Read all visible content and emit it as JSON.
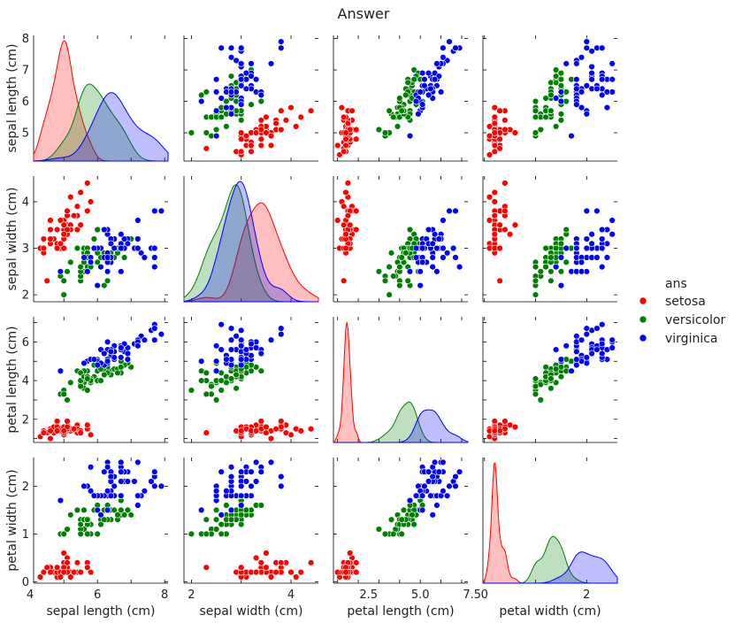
{
  "chart_data": {
    "type": "scatter",
    "title": "Answer",
    "variables": [
      "sepal length (cm)",
      "sepal width (cm)",
      "petal length (cm)",
      "petal width (cm)"
    ],
    "ranges": [
      [
        4.1,
        8.1
      ],
      [
        1.85,
        4.55
      ],
      [
        0.8,
        7.3
      ],
      [
        -0.03,
        2.6
      ]
    ],
    "ticks": [
      [
        4,
        5,
        6,
        7,
        8
      ],
      [
        2,
        3,
        4
      ],
      [
        1,
        2,
        3,
        4,
        5,
        6,
        7
      ],
      [
        0,
        1,
        2
      ]
    ],
    "x_tick_labels": [
      [
        "4",
        "6",
        "8"
      ],
      [
        "2",
        "4"
      ],
      [
        "2.5",
        "5.0",
        "7.5"
      ],
      [
        "0",
        "2"
      ]
    ],
    "y_tick_labels": [
      [
        "5",
        "6",
        "7",
        "8"
      ],
      [
        "2",
        "3",
        "4"
      ],
      [
        "2",
        "4",
        "6"
      ],
      [
        "0",
        "1",
        "2"
      ]
    ],
    "x_tick_values": [
      [
        4,
        6,
        8
      ],
      [
        2,
        4
      ],
      [
        2.5,
        5.0,
        7.5
      ],
      [
        0,
        2
      ]
    ],
    "y_tick_values": [
      [
        5,
        6,
        7,
        8
      ],
      [
        2,
        3,
        4
      ],
      [
        2,
        4,
        6
      ],
      [
        0,
        1,
        2
      ]
    ],
    "diagonal": "kde",
    "legend": {
      "title": "ans",
      "position": "right",
      "entries": [
        "setosa",
        "versicolor",
        "virginica"
      ]
    },
    "series": [
      {
        "name": "setosa",
        "color": "#ff0000",
        "points": [
          [
            5.1,
            3.5,
            1.4,
            0.2
          ],
          [
            4.9,
            3.0,
            1.4,
            0.2
          ],
          [
            4.7,
            3.2,
            1.3,
            0.2
          ],
          [
            4.6,
            3.1,
            1.5,
            0.2
          ],
          [
            5.0,
            3.6,
            1.4,
            0.2
          ],
          [
            5.4,
            3.9,
            1.7,
            0.4
          ],
          [
            4.6,
            3.4,
            1.4,
            0.3
          ],
          [
            5.0,
            3.4,
            1.5,
            0.2
          ],
          [
            4.4,
            2.9,
            1.4,
            0.2
          ],
          [
            4.9,
            3.1,
            1.5,
            0.1
          ],
          [
            5.4,
            3.7,
            1.5,
            0.2
          ],
          [
            4.8,
            3.4,
            1.6,
            0.2
          ],
          [
            4.8,
            3.0,
            1.4,
            0.1
          ],
          [
            4.3,
            3.0,
            1.1,
            0.1
          ],
          [
            5.8,
            4.0,
            1.2,
            0.2
          ],
          [
            5.7,
            4.4,
            1.5,
            0.4
          ],
          [
            5.4,
            3.9,
            1.3,
            0.4
          ],
          [
            5.1,
            3.5,
            1.4,
            0.3
          ],
          [
            5.7,
            3.8,
            1.7,
            0.3
          ],
          [
            5.1,
            3.8,
            1.5,
            0.3
          ],
          [
            5.4,
            3.4,
            1.7,
            0.2
          ],
          [
            5.1,
            3.7,
            1.5,
            0.4
          ],
          [
            4.6,
            3.6,
            1.0,
            0.2
          ],
          [
            5.1,
            3.3,
            1.7,
            0.5
          ],
          [
            4.8,
            3.4,
            1.9,
            0.2
          ],
          [
            5.0,
            3.0,
            1.6,
            0.2
          ],
          [
            5.0,
            3.4,
            1.6,
            0.4
          ],
          [
            5.2,
            3.5,
            1.5,
            0.2
          ],
          [
            5.2,
            3.4,
            1.4,
            0.2
          ],
          [
            4.7,
            3.2,
            1.6,
            0.2
          ],
          [
            4.8,
            3.1,
            1.6,
            0.2
          ],
          [
            5.4,
            3.4,
            1.5,
            0.4
          ],
          [
            5.2,
            4.1,
            1.5,
            0.1
          ],
          [
            5.5,
            4.2,
            1.4,
            0.2
          ],
          [
            4.9,
            3.1,
            1.5,
            0.2
          ],
          [
            5.0,
            3.2,
            1.2,
            0.2
          ],
          [
            5.5,
            3.5,
            1.3,
            0.2
          ],
          [
            4.9,
            3.6,
            1.4,
            0.1
          ],
          [
            4.4,
            3.0,
            1.3,
            0.2
          ],
          [
            5.1,
            3.4,
            1.5,
            0.2
          ],
          [
            5.0,
            3.5,
            1.3,
            0.3
          ],
          [
            4.5,
            2.3,
            1.3,
            0.3
          ],
          [
            4.4,
            3.2,
            1.3,
            0.2
          ],
          [
            5.0,
            3.5,
            1.6,
            0.6
          ],
          [
            5.1,
            3.8,
            1.9,
            0.4
          ],
          [
            4.8,
            3.0,
            1.4,
            0.3
          ],
          [
            5.1,
            3.8,
            1.6,
            0.2
          ],
          [
            4.6,
            3.2,
            1.4,
            0.2
          ],
          [
            5.3,
            3.7,
            1.5,
            0.2
          ],
          [
            5.0,
            3.3,
            1.4,
            0.2
          ]
        ]
      },
      {
        "name": "versicolor",
        "color": "#008000",
        "points": [
          [
            7.0,
            3.2,
            4.7,
            1.4
          ],
          [
            6.4,
            3.2,
            4.5,
            1.5
          ],
          [
            6.9,
            3.1,
            4.9,
            1.5
          ],
          [
            5.5,
            2.3,
            4.0,
            1.3
          ],
          [
            6.5,
            2.8,
            4.6,
            1.5
          ],
          [
            5.7,
            2.8,
            4.5,
            1.3
          ],
          [
            6.3,
            3.3,
            4.7,
            1.6
          ],
          [
            4.9,
            2.4,
            3.3,
            1.0
          ],
          [
            6.6,
            2.9,
            4.6,
            1.3
          ],
          [
            5.2,
            2.7,
            3.9,
            1.4
          ],
          [
            5.0,
            2.0,
            3.5,
            1.0
          ],
          [
            5.9,
            3.0,
            4.2,
            1.5
          ],
          [
            6.0,
            2.2,
            4.0,
            1.0
          ],
          [
            6.1,
            2.9,
            4.7,
            1.4
          ],
          [
            5.6,
            2.9,
            3.6,
            1.3
          ],
          [
            6.7,
            3.1,
            4.4,
            1.4
          ],
          [
            5.6,
            3.0,
            4.5,
            1.5
          ],
          [
            5.8,
            2.7,
            4.1,
            1.0
          ],
          [
            6.2,
            2.2,
            4.5,
            1.5
          ],
          [
            5.6,
            2.5,
            3.9,
            1.1
          ],
          [
            5.9,
            3.2,
            4.8,
            1.8
          ],
          [
            6.1,
            2.8,
            4.0,
            1.3
          ],
          [
            6.3,
            2.5,
            4.9,
            1.5
          ],
          [
            6.1,
            2.8,
            4.7,
            1.2
          ],
          [
            6.4,
            2.9,
            4.3,
            1.3
          ],
          [
            6.6,
            3.0,
            4.4,
            1.4
          ],
          [
            6.8,
            2.8,
            4.8,
            1.4
          ],
          [
            6.7,
            3.0,
            5.0,
            1.7
          ],
          [
            6.0,
            2.9,
            4.5,
            1.5
          ],
          [
            5.7,
            2.6,
            3.5,
            1.0
          ],
          [
            5.5,
            2.4,
            3.8,
            1.1
          ],
          [
            5.5,
            2.4,
            3.7,
            1.0
          ],
          [
            5.8,
            2.7,
            3.9,
            1.2
          ],
          [
            6.0,
            2.7,
            5.1,
            1.6
          ],
          [
            5.4,
            3.0,
            4.5,
            1.5
          ],
          [
            6.0,
            3.4,
            4.5,
            1.6
          ],
          [
            6.7,
            3.1,
            4.7,
            1.5
          ],
          [
            6.3,
            2.3,
            4.4,
            1.3
          ],
          [
            5.6,
            3.0,
            4.1,
            1.3
          ],
          [
            5.5,
            2.5,
            4.0,
            1.3
          ],
          [
            5.5,
            2.6,
            4.4,
            1.2
          ],
          [
            6.1,
            3.0,
            4.6,
            1.4
          ],
          [
            5.8,
            2.6,
            4.0,
            1.2
          ],
          [
            5.0,
            2.3,
            3.3,
            1.0
          ],
          [
            5.6,
            2.7,
            4.2,
            1.3
          ],
          [
            5.7,
            3.0,
            4.2,
            1.2
          ],
          [
            5.7,
            2.9,
            4.2,
            1.3
          ],
          [
            6.2,
            2.9,
            4.3,
            1.3
          ],
          [
            5.1,
            2.5,
            3.0,
            1.1
          ],
          [
            5.7,
            2.8,
            4.1,
            1.3
          ]
        ]
      },
      {
        "name": "virginica",
        "color": "#0000ff",
        "points": [
          [
            6.3,
            3.3,
            6.0,
            2.5
          ],
          [
            5.8,
            2.7,
            5.1,
            1.9
          ],
          [
            7.1,
            3.0,
            5.9,
            2.1
          ],
          [
            6.3,
            2.9,
            5.6,
            1.8
          ],
          [
            6.5,
            3.0,
            5.8,
            2.2
          ],
          [
            7.6,
            3.0,
            6.6,
            2.1
          ],
          [
            4.9,
            2.5,
            4.5,
            1.7
          ],
          [
            7.3,
            2.9,
            6.3,
            1.8
          ],
          [
            6.7,
            2.5,
            5.8,
            1.8
          ],
          [
            7.2,
            3.6,
            6.1,
            2.5
          ],
          [
            6.5,
            3.2,
            5.1,
            2.0
          ],
          [
            6.4,
            2.7,
            5.3,
            1.9
          ],
          [
            6.8,
            3.0,
            5.5,
            2.1
          ],
          [
            5.7,
            2.5,
            5.0,
            2.0
          ],
          [
            5.8,
            2.8,
            5.1,
            2.4
          ],
          [
            6.4,
            3.2,
            5.3,
            2.3
          ],
          [
            6.5,
            3.0,
            5.5,
            1.8
          ],
          [
            7.7,
            3.8,
            6.7,
            2.2
          ],
          [
            7.7,
            2.6,
            6.9,
            2.3
          ],
          [
            6.0,
            2.2,
            5.0,
            1.5
          ],
          [
            6.9,
            3.2,
            5.7,
            2.3
          ],
          [
            5.6,
            2.8,
            4.9,
            2.0
          ],
          [
            7.7,
            2.8,
            6.7,
            2.0
          ],
          [
            6.3,
            2.7,
            4.9,
            1.8
          ],
          [
            6.7,
            3.3,
            5.7,
            2.1
          ],
          [
            7.2,
            3.2,
            6.0,
            1.8
          ],
          [
            6.2,
            2.8,
            4.8,
            1.8
          ],
          [
            6.1,
            3.0,
            4.9,
            1.8
          ],
          [
            6.4,
            2.8,
            5.6,
            2.1
          ],
          [
            7.2,
            3.0,
            5.8,
            1.6
          ],
          [
            7.4,
            2.8,
            6.1,
            1.9
          ],
          [
            7.9,
            3.8,
            6.4,
            2.0
          ],
          [
            6.4,
            2.8,
            5.6,
            2.2
          ],
          [
            6.3,
            2.8,
            5.1,
            1.5
          ],
          [
            6.1,
            2.6,
            5.6,
            1.4
          ],
          [
            7.7,
            3.0,
            6.1,
            2.3
          ],
          [
            6.3,
            3.4,
            5.6,
            2.4
          ],
          [
            6.4,
            3.1,
            5.5,
            1.8
          ],
          [
            6.0,
            3.0,
            4.8,
            1.8
          ],
          [
            6.9,
            3.1,
            5.4,
            2.1
          ],
          [
            6.7,
            3.1,
            5.6,
            2.4
          ],
          [
            6.9,
            3.1,
            5.1,
            2.3
          ],
          [
            5.8,
            2.7,
            5.1,
            1.9
          ],
          [
            6.8,
            3.2,
            5.9,
            2.3
          ],
          [
            6.7,
            3.3,
            5.7,
            2.5
          ],
          [
            6.7,
            3.0,
            5.2,
            2.3
          ],
          [
            6.3,
            2.5,
            5.0,
            1.9
          ],
          [
            6.5,
            3.0,
            5.2,
            2.0
          ],
          [
            6.2,
            3.4,
            5.4,
            2.3
          ],
          [
            5.9,
            3.0,
            5.1,
            1.8
          ]
        ]
      }
    ]
  }
}
